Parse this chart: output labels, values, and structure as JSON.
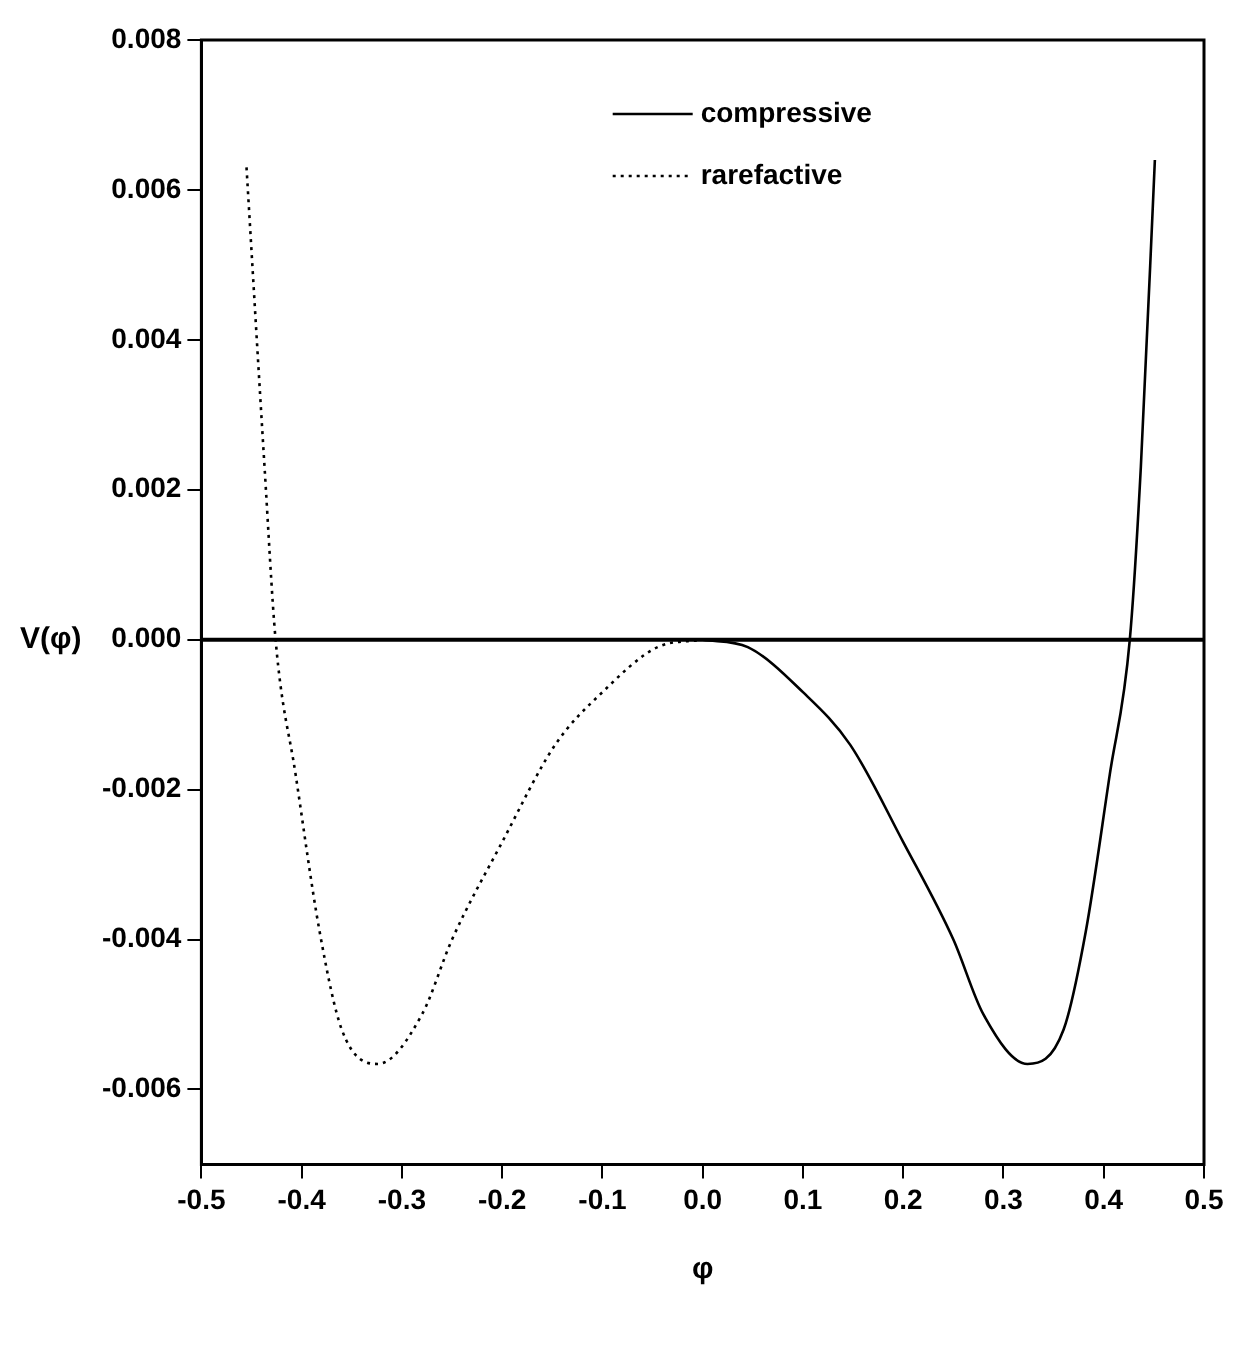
{
  "chart_data": {
    "type": "line",
    "xlabel": "φ",
    "ylabel": "V(φ)",
    "series": [
      {
        "name": "compressive",
        "color": "#000000",
        "line_style": "solid",
        "x": [
          0,
          0.045,
          0.1,
          0.147,
          0.2,
          0.25,
          0.28,
          0.324,
          0.36,
          0.382,
          0.406,
          0.426,
          0.437,
          0.451
        ],
        "values": [
          0,
          -0.0001,
          -0.0007,
          -0.0014,
          -0.0027,
          -0.004,
          -0.005,
          -0.00566,
          -0.0052,
          -0.0039,
          -0.0018,
          0,
          0.0023,
          0.0064
        ]
      },
      {
        "name": "rarefactive",
        "color": "#000000",
        "line_style": "dotted",
        "x": [
          -0.455,
          -0.437,
          -0.426,
          -0.406,
          -0.382,
          -0.36,
          -0.324,
          -0.28,
          -0.25,
          -0.2,
          -0.147,
          -0.1,
          -0.045,
          0
        ],
        "values": [
          0.0063,
          0.0023,
          0,
          -0.0018,
          -0.0039,
          -0.0052,
          -0.00566,
          -0.005,
          -0.004,
          -0.0027,
          -0.0014,
          -0.0007,
          -0.0001,
          0
        ]
      }
    ],
    "xlim": [
      -0.5,
      0.5
    ],
    "ylim": [
      -0.007,
      0.008
    ],
    "xticks": [
      -0.5,
      -0.4,
      -0.3,
      -0.2,
      -0.1,
      {
        "value": 0,
        "label": "0.0"
      },
      0.1,
      0.2,
      0.3,
      0.4,
      0.5
    ],
    "yticks": [
      {
        "value": -0.006,
        "label": "-0.006"
      },
      {
        "value": -0.004,
        "label": "-0.004"
      },
      {
        "value": -0.002,
        "label": "-0.002"
      },
      {
        "value": 0,
        "label": "0.000"
      },
      {
        "value": 0.002,
        "label": "0.002"
      },
      {
        "value": 0.004,
        "label": "0.004"
      },
      {
        "value": 0.006,
        "label": "0.006"
      },
      {
        "value": 0.008,
        "label": "0.008"
      }
    ],
    "ref_lines": [
      {
        "axis": "y",
        "value": 0,
        "color": "#000000"
      }
    ],
    "grid": false,
    "legend": "top",
    "marker": "none"
  }
}
